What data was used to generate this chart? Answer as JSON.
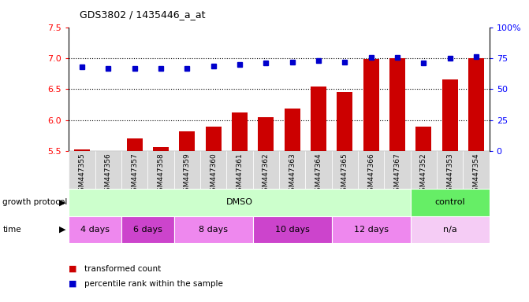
{
  "title": "GDS3802 / 1435446_a_at",
  "samples": [
    "GSM447355",
    "GSM447356",
    "GSM447357",
    "GSM447358",
    "GSM447359",
    "GSM447360",
    "GSM447361",
    "GSM447362",
    "GSM447363",
    "GSM447364",
    "GSM447365",
    "GSM447366",
    "GSM447367",
    "GSM447352",
    "GSM447353",
    "GSM447354"
  ],
  "bar_values": [
    5.52,
    5.5,
    5.7,
    5.56,
    5.82,
    5.9,
    6.12,
    6.04,
    6.18,
    6.54,
    6.45,
    6.98,
    7.0,
    5.9,
    6.66,
    7.0
  ],
  "dot_values": [
    6.86,
    6.84,
    6.84,
    6.84,
    6.84,
    6.87,
    6.9,
    6.92,
    6.94,
    6.96,
    6.94,
    7.01,
    7.01,
    6.92,
    7.0,
    7.02
  ],
  "bar_color": "#cc0000",
  "dot_color": "#0000cc",
  "ylim_left": [
    5.5,
    7.5
  ],
  "ylim_right": [
    0,
    100
  ],
  "yticks_left": [
    5.5,
    6.0,
    6.5,
    7.0,
    7.5
  ],
  "yticks_right": [
    0,
    25,
    50,
    75,
    100
  ],
  "ytick_right_labels": [
    "0",
    "25",
    "50",
    "75",
    "100%"
  ],
  "grid_values": [
    6.0,
    6.5,
    7.0
  ],
  "protocol_groups": [
    {
      "label": "DMSO",
      "start": 0,
      "end": 13,
      "color": "#ccffcc"
    },
    {
      "label": "control",
      "start": 13,
      "end": 16,
      "color": "#66ee66"
    }
  ],
  "time_groups": [
    {
      "label": "4 days",
      "start": 0,
      "end": 2,
      "color": "#ee88ee"
    },
    {
      "label": "6 days",
      "start": 2,
      "end": 4,
      "color": "#cc44cc"
    },
    {
      "label": "8 days",
      "start": 4,
      "end": 7,
      "color": "#ee88ee"
    },
    {
      "label": "10 days",
      "start": 7,
      "end": 10,
      "color": "#cc44cc"
    },
    {
      "label": "12 days",
      "start": 10,
      "end": 13,
      "color": "#ee88ee"
    },
    {
      "label": "n/a",
      "start": 13,
      "end": 16,
      "color": "#f5ccf5"
    }
  ],
  "protocol_label": "growth protocol",
  "time_label": "time",
  "legend_bar_label": "transformed count",
  "legend_dot_label": "percentile rank within the sample",
  "tick_bg_color": "#d8d8d8",
  "plot_bg_color": "#ffffff"
}
